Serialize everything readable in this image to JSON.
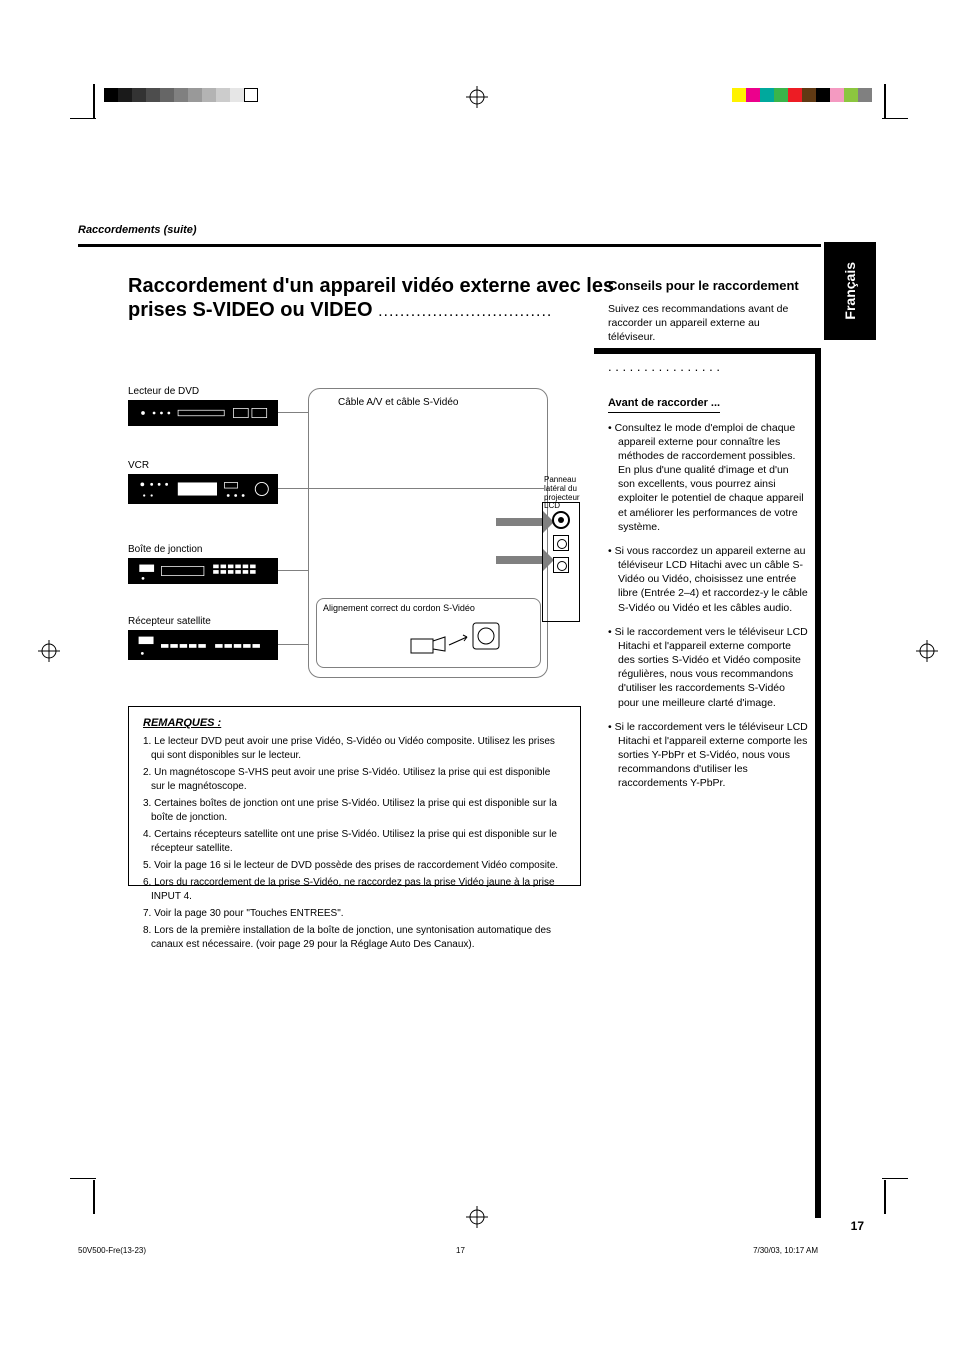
{
  "meta": {
    "header_continuation": "Raccordements (suite)",
    "page_number": "17",
    "tab_label": "Français",
    "footer_left": "50V500-Fre(13-23)",
    "footer_center": "17",
    "footer_right": "7/30/03, 10:17 AM"
  },
  "graybar_colors": [
    "#000000",
    "#1a1a1a",
    "#333333",
    "#4d4d4d",
    "#666666",
    "#808080",
    "#999999",
    "#b3b3b3",
    "#cccccc",
    "#e6e6e6",
    "#ffffff"
  ],
  "colorbar_colors": [
    "#fff200",
    "#ec008c",
    "#00a99d",
    "#39b54a",
    "#ed1c24",
    "#603913",
    "#000000",
    "#f49ac1",
    "#8cc63f",
    "#808080"
  ],
  "left": {
    "title_line1": "Raccordement d'un appareil vidéo externe avec les",
    "title_line2": "prises S-VIDEO ou VIDEO",
    "dvd_label": "Lecteur de DVD",
    "vcr_label": "VCR",
    "cable_label": "Boîte de jonction",
    "sat_label": "Récepteur satellite",
    "tv_panel_label": "Panneau latéral du projecteur LCD",
    "bubble_top": "Câble A/V et câble S-Vidéo",
    "bubble_note": "Alignement correct du cordon S-Vidéo"
  },
  "remarks": {
    "title": "REMARQUES :",
    "items": [
      "Le lecteur DVD peut avoir une prise Vidéo, S-Vidéo ou Vidéo composite. Utilisez les prises qui sont disponibles sur le lecteur.",
      "Un magnétoscope S-VHS peut avoir une prise S-Vidéo. Utilisez la prise qui est disponible sur le magnétoscope.",
      "Certaines boîtes de jonction ont une prise S-Vidéo. Utilisez la prise qui est disponible sur la boîte de jonction.",
      "Certains récepteurs satellite ont une prise S-Vidéo. Utilisez la prise qui est disponible sur le récepteur satellite.",
      "Voir la page 16 si le lecteur de DVD possède des prises de raccordement Vidéo composite.",
      "Lors du raccordement de la prise S-Vidéo, ne raccordez pas la prise Vidéo jaune à la prise INPUT 4.",
      "Voir la page 30 pour \"Touches ENTREES\".",
      "Lors de la première installation de la boîte de jonction, une syntonisation automatique des canaux est nécessaire. (voir page 29 pour la Réglage Auto Des Canaux)."
    ]
  },
  "right": {
    "title": "Conseils pour le raccordement",
    "intro": "Suivez ces recommandations avant de raccorder un appareil externe au téléviseur.",
    "sub_title": "Avant de raccorder ...",
    "bullets": [
      "Consultez le mode d'emploi de chaque appareil externe pour connaître les méthodes de raccordement possibles. En plus d'une qualité d'image et d'un son excellents, vous pourrez ainsi exploiter le potentiel de chaque appareil et améliorer les performances de votre système.",
      "Si vous raccordez un appareil externe au téléviseur LCD Hitachi avec un câble S-Vidéo ou Vidéo, choisissez une entrée libre (Entrée 2–4) et raccordez-y le câble S-Vidéo ou Vidéo et les câbles audio.",
      "Si le raccordement vers le téléviseur LCD Hitachi et l'appareil externe comporte des sorties S-Vidéo et Vidéo composite régulières, nous vous recommandons d'utiliser les raccordements S-Vidéo pour une meilleure clarté d'image.",
      "Si le raccordement vers le téléviseur LCD Hitachi et l'appareil externe comporte les sorties Y-PbPr et S-Vidéo, nous vous recommandons d'utiliser les raccordements Y-PbPr."
    ]
  },
  "colors": {
    "black": "#000000",
    "gray_line": "#808080"
  }
}
